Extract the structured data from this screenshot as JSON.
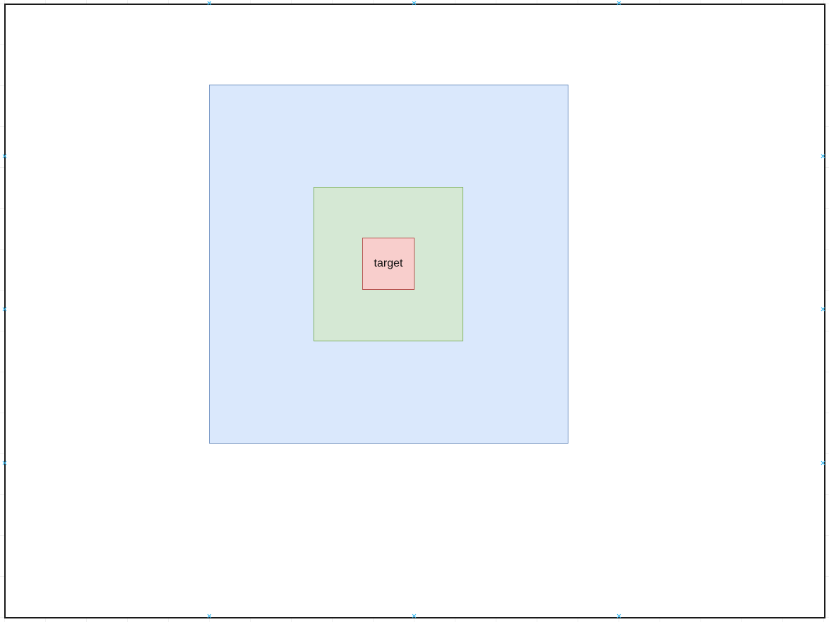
{
  "diagram": {
    "shapes": [
      {
        "id": "outer",
        "label": "",
        "fill": "#dae8fc",
        "stroke": "#6c8ebf"
      },
      {
        "id": "middle",
        "label": "",
        "fill": "#d5e8d4",
        "stroke": "#82b366"
      },
      {
        "id": "inner",
        "label": "target",
        "fill": "#f8cecc",
        "stroke": "#b85450"
      }
    ],
    "frame_stroke": "#1a1a1a",
    "handle_color": "#29b6f2"
  }
}
